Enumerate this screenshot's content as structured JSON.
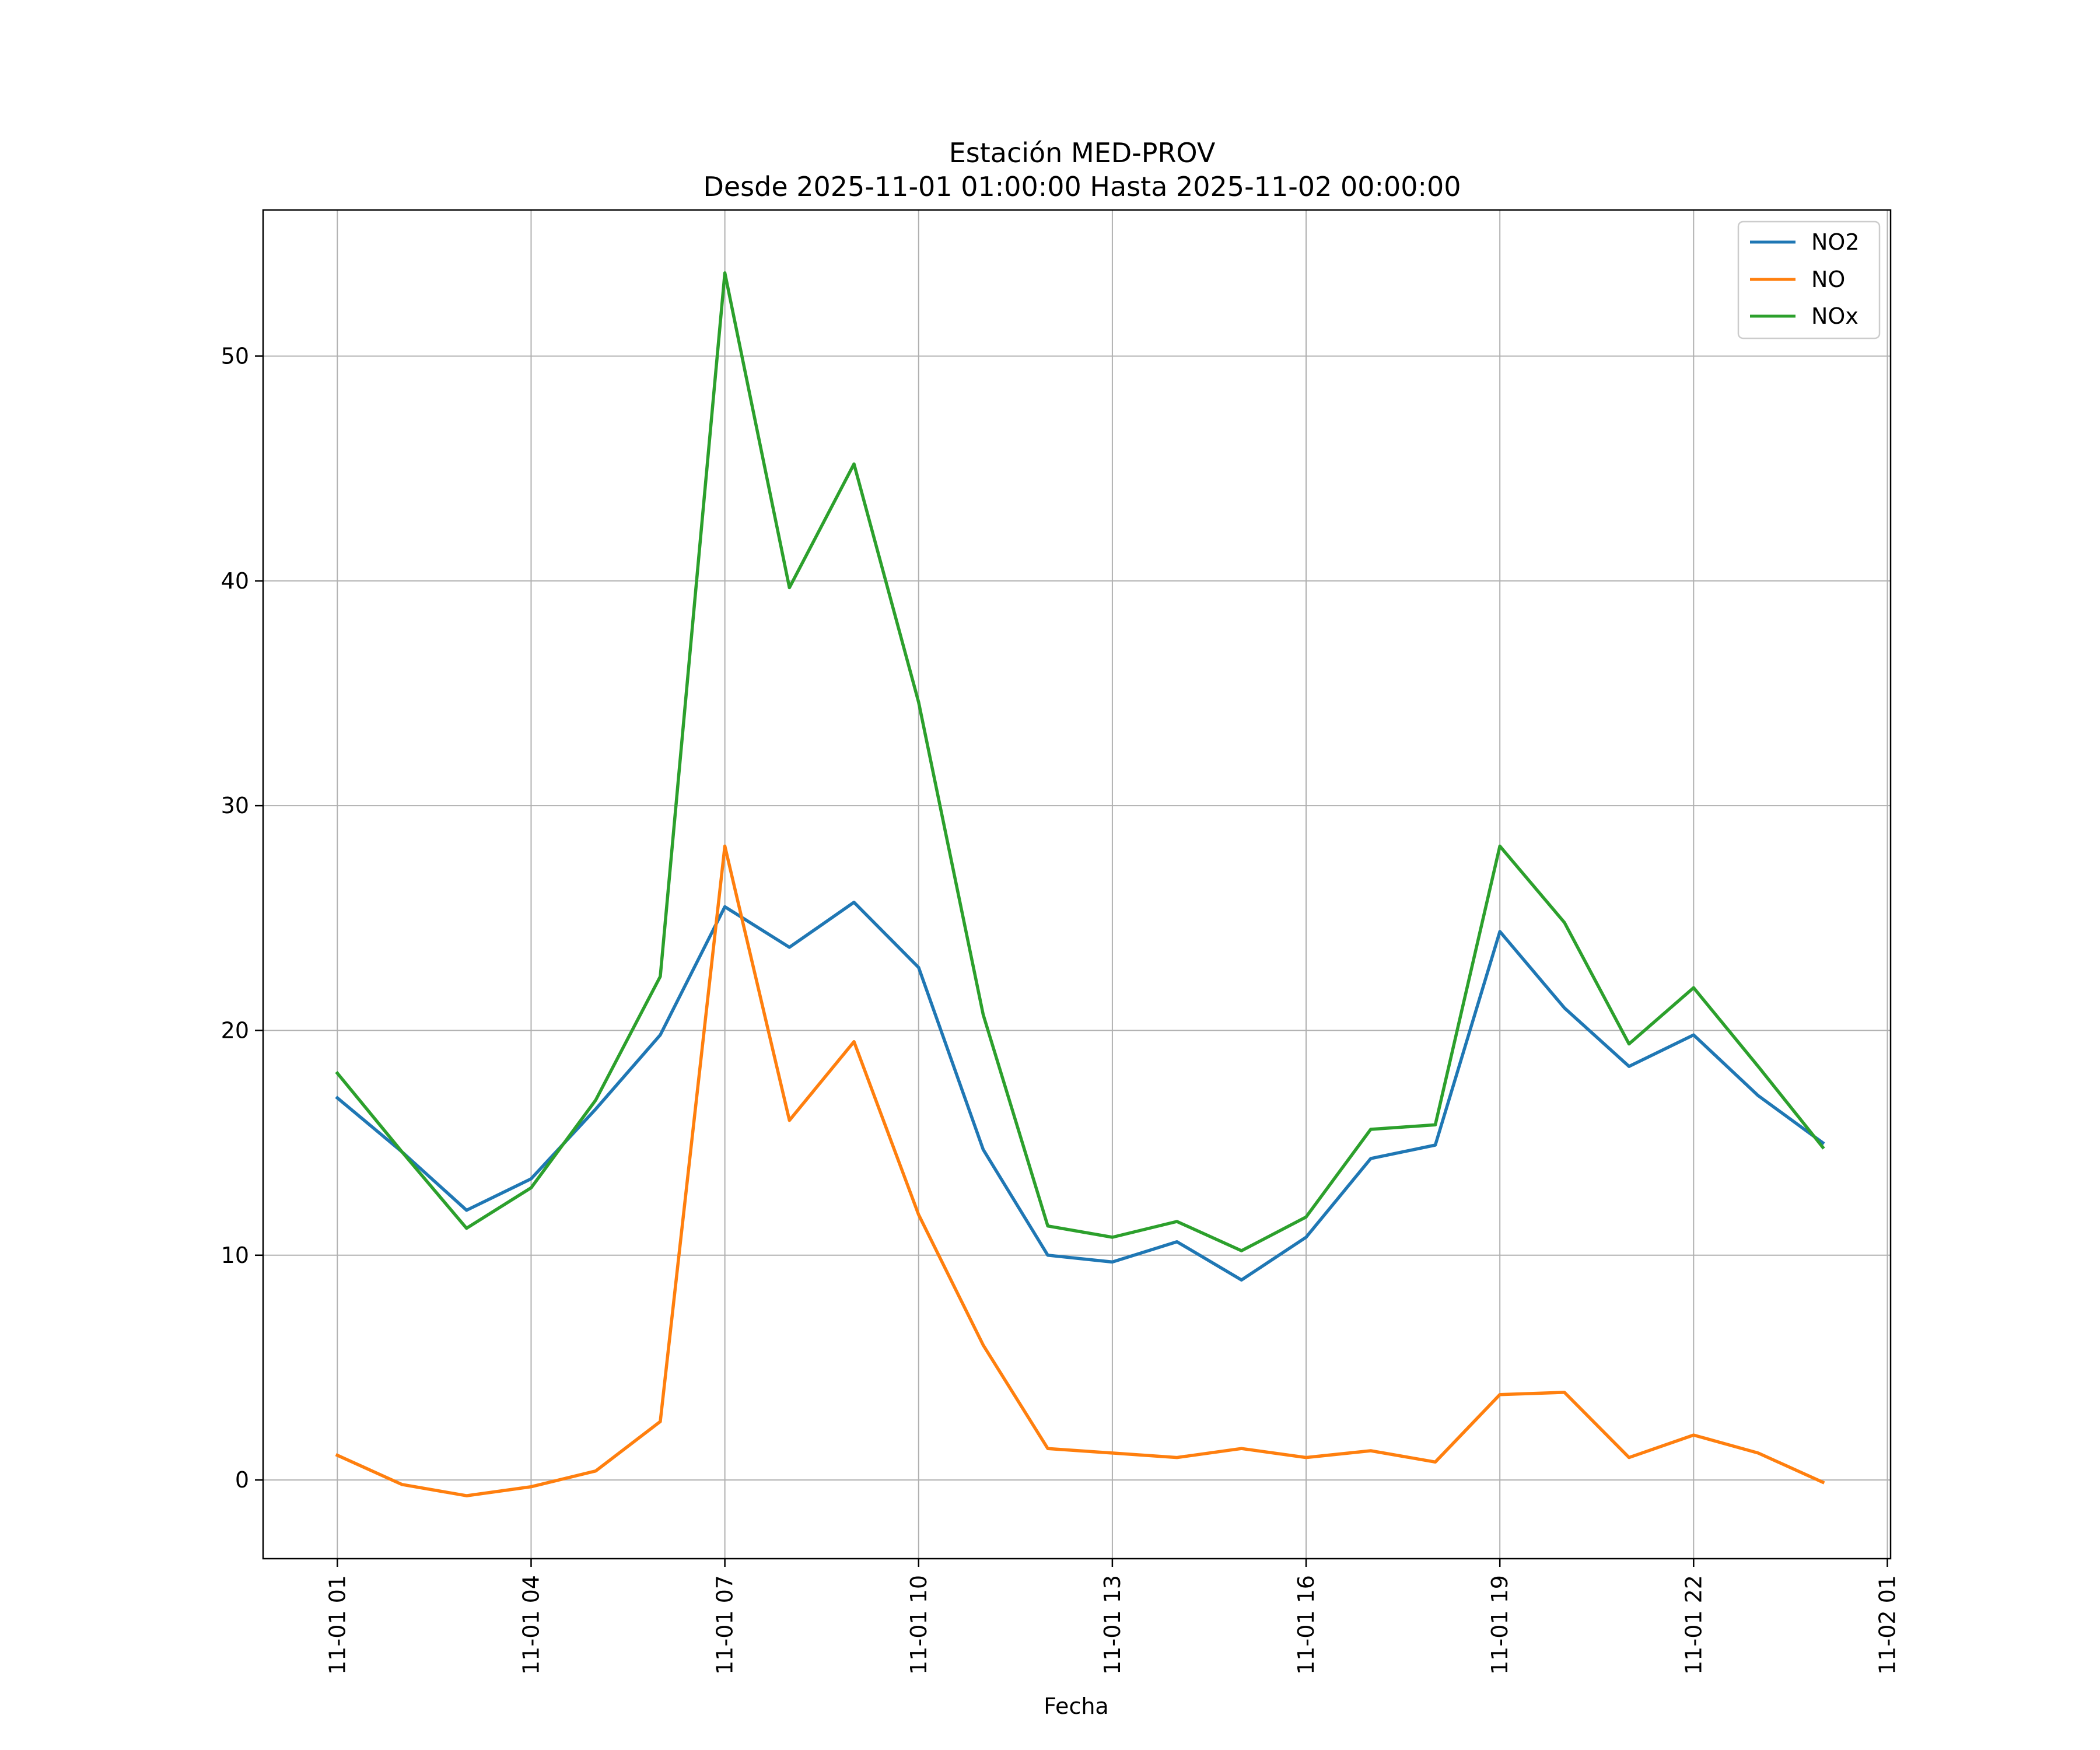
{
  "chart_data": {
    "type": "line",
    "title": "Estación MED-PROV",
    "subtitle": "Desde 2025-11-01 01:00:00 Hasta 2025-11-02 00:00:00",
    "xlabel": "Fecha",
    "ylabel": "",
    "x_hours": [
      1,
      2,
      3,
      4,
      5,
      6,
      7,
      8,
      9,
      10,
      11,
      12,
      13,
      14,
      15,
      16,
      17,
      18,
      19,
      20,
      21,
      22,
      23,
      24
    ],
    "xlim": [
      -0.15,
      25.05
    ],
    "ylim": [
      -3.5,
      56.5
    ],
    "x_ticks": [
      1,
      4,
      7,
      10,
      13,
      16,
      19,
      22,
      25
    ],
    "x_tick_labels": [
      "11-01 01",
      "11-01 04",
      "11-01 07",
      "11-01 10",
      "11-01 13",
      "11-01 16",
      "11-01 19",
      "11-01 22",
      "11-02 01"
    ],
    "y_ticks": [
      0,
      10,
      20,
      30,
      40,
      50
    ],
    "y_tick_labels": [
      "0",
      "10",
      "20",
      "30",
      "40",
      "50"
    ],
    "grid": true,
    "legend_position": "top-right",
    "series": [
      {
        "name": "NO2",
        "color": "#1f77b4",
        "values": [
          17.0,
          14.6,
          12.0,
          13.4,
          16.5,
          19.8,
          25.5,
          23.7,
          25.7,
          22.8,
          14.7,
          10.0,
          9.7,
          10.6,
          8.9,
          10.8,
          14.3,
          14.9,
          24.4,
          21.0,
          18.4,
          19.8,
          17.1,
          15.0
        ]
      },
      {
        "name": "NO",
        "color": "#ff7f0e",
        "values": [
          1.1,
          -0.2,
          -0.7,
          -0.3,
          0.4,
          2.6,
          28.2,
          16.0,
          19.5,
          11.8,
          6.0,
          1.4,
          1.2,
          1.0,
          1.4,
          1.0,
          1.3,
          0.8,
          3.8,
          3.9,
          1.0,
          2.0,
          1.2,
          -0.1
        ]
      },
      {
        "name": "NOx",
        "color": "#2ca02c",
        "values": [
          18.1,
          14.6,
          11.2,
          13.0,
          16.9,
          22.4,
          53.7,
          39.7,
          45.2,
          34.6,
          20.7,
          11.3,
          10.8,
          11.5,
          10.2,
          11.7,
          15.6,
          15.8,
          28.2,
          24.8,
          19.4,
          21.9,
          18.4,
          14.8
        ]
      }
    ]
  }
}
